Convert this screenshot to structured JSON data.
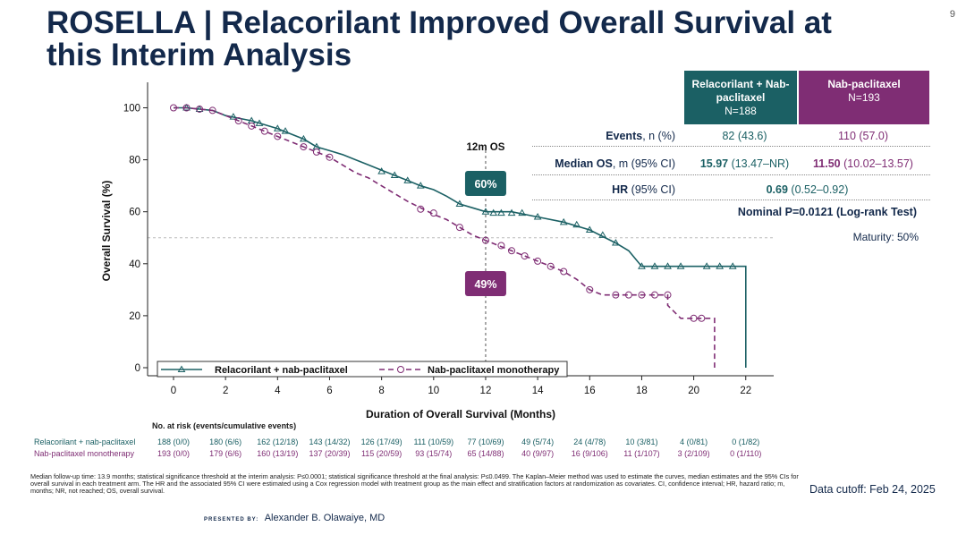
{
  "slide": {
    "title": "ROSELLA | Relacorilant Improved Overall Survival at this Interim Analysis",
    "page_number": "9",
    "presented_by_label": "PRESENTED BY:",
    "presenter": "Alexander B. Olawaiye, MD",
    "data_cutoff": "Data cutoff: Feb 24, 2025",
    "footnote": "Median follow-up time: 13.9 months; statistical significance threshold at the interim analysis: P≤0.0001; statistical significance threshold at the final analysis: P≤0.0499. The Kaplan–Meier method was used to estimate the curves, median estimates and the 95% CIs for overall survival in each treatment arm. The HR and the associated 95% CI were estimated using a Cox regression model with treatment group as the main effect and stratification factors at randomization as covariates. CI, confidence interval; HR, hazard ratio; m, months; NR, not reached; OS, overall survival."
  },
  "colors": {
    "teal": "#1b6064",
    "magenta": "#7f2d74",
    "title": "#13294b"
  },
  "summary": {
    "arm1_header": "Relacorilant + Nab-paclitaxel",
    "arm1_n": "N=188",
    "arm2_header": "Nab-paclitaxel",
    "arm2_n": "N=193",
    "events_label_bold": "Events",
    "events_label_rest": ", n (%)",
    "events_arm1": "82 (43.6)",
    "events_arm2": "110 (57.0)",
    "median_label_bold": "Median OS",
    "median_label_rest": ", m (95% CI)",
    "median_arm1_bold": "15.97",
    "median_arm1_rest": " (13.47–NR)",
    "median_arm2_bold": "11.50",
    "median_arm2_rest": " (10.02–13.57)",
    "hr_label_bold": "HR",
    "hr_label_rest": " (95% CI)",
    "hr_bold": "0.69",
    "hr_rest": " (0.52–0.92)",
    "pvalue": "Nominal P=0.0121 (Log-rank Test)",
    "maturity": "Maturity: 50%"
  },
  "risk_table": {
    "header": "No. at risk (events/cumulative events)",
    "arm1_label": "Relacorilant + nab-paclitaxel",
    "arm2_label": "Nab-paclitaxel monotherapy",
    "arm1": [
      "188 (0/0)",
      "180 (6/6)",
      "162 (12/18)",
      "143 (14/32)",
      "126 (17/49)",
      "111 (10/59)",
      "77 (10/69)",
      "49 (5/74)",
      "24 (4/78)",
      "10 (3/81)",
      "4 (0/81)",
      "0 (1/82)"
    ],
    "arm2": [
      "193 (0/0)",
      "179 (6/6)",
      "160 (13/19)",
      "137 (20/39)",
      "115 (20/59)",
      "93 (15/74)",
      "65 (14/88)",
      "40 (9/97)",
      "16 (9/106)",
      "11 (1/107)",
      "3 (2/109)",
      "0 (1/110)"
    ]
  },
  "chart_data": {
    "type": "line",
    "title": "",
    "xlabel": "Duration of Overall Survival (Months)",
    "ylabel": "Overall Survival (%)",
    "xlim": [
      -1,
      23.5
    ],
    "ylim": [
      -3,
      110
    ],
    "xticks": [
      0,
      2,
      4,
      6,
      8,
      10,
      12,
      14,
      16,
      18,
      20,
      22
    ],
    "yticks": [
      0,
      20,
      40,
      60,
      80,
      100
    ],
    "reference_hline": 50,
    "reference_vline": 12,
    "reference_vline_label": "12m OS",
    "legend_position": "bottom-left",
    "series": [
      {
        "name": "Relacorilant + nab-paclitaxel",
        "marker": "triangle",
        "line_style": "solid",
        "points": [
          [
            0,
            100
          ],
          [
            0.5,
            100
          ],
          [
            1,
            99.5
          ],
          [
            1.5,
            99
          ],
          [
            2,
            97
          ],
          [
            2.5,
            96
          ],
          [
            3,
            95
          ],
          [
            3.5,
            93.5
          ],
          [
            4,
            92
          ],
          [
            4.5,
            90
          ],
          [
            5,
            88
          ],
          [
            5.5,
            85
          ],
          [
            6,
            83.5
          ],
          [
            6.5,
            82
          ],
          [
            7,
            80
          ],
          [
            7.5,
            78
          ],
          [
            8,
            76
          ],
          [
            8.5,
            74
          ],
          [
            9,
            72
          ],
          [
            9.5,
            70
          ],
          [
            10,
            68.5
          ],
          [
            10.5,
            66
          ],
          [
            11,
            63
          ],
          [
            11.5,
            61.5
          ],
          [
            12,
            60
          ],
          [
            13,
            60
          ],
          [
            14,
            58
          ],
          [
            15,
            56
          ],
          [
            16,
            53
          ],
          [
            17,
            48
          ],
          [
            17.5,
            45
          ],
          [
            18,
            39
          ],
          [
            19,
            39
          ],
          [
            20,
            39
          ],
          [
            21,
            39
          ],
          [
            22,
            39
          ],
          [
            22,
            0
          ]
        ],
        "censor_marks": [
          [
            0.5,
            100
          ],
          [
            1,
            99.5
          ],
          [
            2.3,
            96.5
          ],
          [
            3,
            95
          ],
          [
            3.3,
            94
          ],
          [
            4,
            92
          ],
          [
            4.3,
            91
          ],
          [
            5,
            88
          ],
          [
            5.5,
            85
          ],
          [
            8,
            75.5
          ],
          [
            8.5,
            74
          ],
          [
            9,
            72
          ],
          [
            9.5,
            70
          ],
          [
            11,
            63
          ],
          [
            12,
            60
          ],
          [
            12.3,
            59.5
          ],
          [
            12.6,
            59.5
          ],
          [
            13,
            59.5
          ],
          [
            13.4,
            59.5
          ],
          [
            14,
            58
          ],
          [
            15,
            56
          ],
          [
            15.5,
            55
          ],
          [
            16,
            53
          ],
          [
            16.5,
            51
          ],
          [
            17,
            48
          ],
          [
            18,
            39
          ],
          [
            18.5,
            39
          ],
          [
            19,
            39
          ],
          [
            19.5,
            39
          ],
          [
            20.5,
            39
          ],
          [
            21,
            39
          ],
          [
            21.5,
            39
          ]
        ],
        "label_at_12m": "60%"
      },
      {
        "name": "Nab-paclitaxel monotherapy",
        "marker": "circle",
        "line_style": "dashed",
        "points": [
          [
            0,
            100
          ],
          [
            0.5,
            100
          ],
          [
            1,
            99.5
          ],
          [
            1.5,
            99
          ],
          [
            2,
            97
          ],
          [
            2.5,
            95
          ],
          [
            3,
            93
          ],
          [
            3.5,
            91
          ],
          [
            4,
            89
          ],
          [
            4.5,
            87
          ],
          [
            5,
            85
          ],
          [
            5.5,
            83
          ],
          [
            6,
            81
          ],
          [
            6.5,
            78
          ],
          [
            7,
            75
          ],
          [
            7.5,
            73
          ],
          [
            8,
            70
          ],
          [
            8.5,
            67
          ],
          [
            9,
            64
          ],
          [
            9.5,
            61.5
          ],
          [
            10,
            59
          ],
          [
            10.5,
            57
          ],
          [
            11,
            54
          ],
          [
            11.5,
            51
          ],
          [
            12,
            49
          ],
          [
            12.5,
            47
          ],
          [
            13,
            45
          ],
          [
            13.5,
            43
          ],
          [
            14,
            41
          ],
          [
            14.5,
            39
          ],
          [
            15,
            37
          ],
          [
            15.5,
            34
          ],
          [
            16,
            30
          ],
          [
            16.5,
            28
          ],
          [
            17,
            28
          ],
          [
            17.5,
            28
          ],
          [
            18,
            28
          ],
          [
            19,
            28
          ],
          [
            19,
            24
          ],
          [
            19.5,
            19
          ],
          [
            20,
            19
          ],
          [
            20.5,
            19
          ],
          [
            20.8,
            19
          ],
          [
            20.8,
            0
          ]
        ],
        "censor_marks": [
          [
            0,
            100
          ],
          [
            0.5,
            100
          ],
          [
            1,
            99.5
          ],
          [
            1.5,
            99
          ],
          [
            2.5,
            95
          ],
          [
            3,
            93
          ],
          [
            3.5,
            91
          ],
          [
            4,
            89
          ],
          [
            5,
            85
          ],
          [
            5.5,
            83
          ],
          [
            6,
            81
          ],
          [
            9.5,
            61
          ],
          [
            10,
            59.5
          ],
          [
            11,
            54
          ],
          [
            12,
            49
          ],
          [
            12.6,
            47
          ],
          [
            13,
            45
          ],
          [
            13.5,
            43
          ],
          [
            14,
            41
          ],
          [
            14.5,
            39
          ],
          [
            15,
            37
          ],
          [
            16,
            30
          ],
          [
            17,
            28
          ],
          [
            17.5,
            28
          ],
          [
            18,
            28
          ],
          [
            18.5,
            28
          ],
          [
            19,
            28
          ],
          [
            20,
            19
          ],
          [
            20.3,
            19
          ]
        ],
        "label_at_12m": "49%"
      }
    ]
  }
}
